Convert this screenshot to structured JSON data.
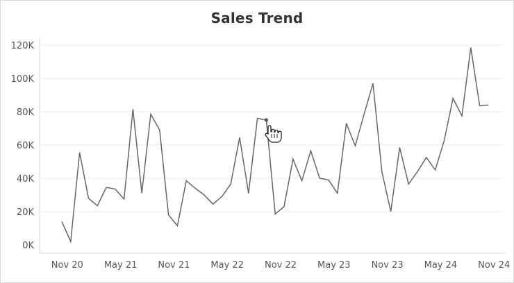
{
  "chart_data": {
    "type": "line",
    "title": "Sales Trend",
    "xlabel": "",
    "ylabel": "",
    "y_ticks": [
      "0K",
      "20K",
      "40K",
      "60K",
      "80K",
      "100K",
      "120K"
    ],
    "y_tick_values": [
      0,
      20000,
      40000,
      60000,
      80000,
      100000,
      120000
    ],
    "x_ticks": [
      "Nov 20",
      "May 21",
      "Nov 21",
      "May 22",
      "Nov 22",
      "May 23",
      "Nov 23",
      "May 24",
      "Nov 24"
    ],
    "x_tick_values": [
      "2020-11",
      "2021-05",
      "2021-11",
      "2022-05",
      "2022-11",
      "2023-05",
      "2023-11",
      "2024-05",
      "2024-11"
    ],
    "ylim": [
      0,
      120000
    ],
    "grid": "horizontal",
    "line_color": "#666666",
    "highlight_color": "#555555",
    "highlight_index": 23,
    "x": [
      "2020-10",
      "2020-11",
      "2020-12",
      "2021-01",
      "2021-02",
      "2021-03",
      "2021-04",
      "2021-05",
      "2021-06",
      "2021-07",
      "2021-08",
      "2021-09",
      "2021-10",
      "2021-11",
      "2021-12",
      "2022-01",
      "2022-02",
      "2022-03",
      "2022-04",
      "2022-05",
      "2022-06",
      "2022-07",
      "2022-08",
      "2022-09",
      "2022-10",
      "2022-11",
      "2022-12",
      "2023-01",
      "2023-02",
      "2023-03",
      "2023-04",
      "2023-05",
      "2023-06",
      "2023-07",
      "2023-08",
      "2023-09",
      "2023-10",
      "2023-11",
      "2023-12",
      "2024-01",
      "2024-02",
      "2024-03",
      "2024-04",
      "2024-05",
      "2024-06",
      "2024-07",
      "2024-08",
      "2024-09",
      "2024-10"
    ],
    "series": [
      {
        "values": [
          14000,
          2000,
          55500,
          28000,
          23500,
          34500,
          33500,
          27500,
          81500,
          31000,
          78500,
          69000,
          18000,
          11500,
          38500,
          34000,
          30000,
          24500,
          29000,
          36500,
          64500,
          31000,
          76000,
          75000,
          18500,
          23000,
          51500,
          38500,
          56500,
          40000,
          39000,
          31000,
          73000,
          59500,
          78500,
          97000,
          44000,
          20000,
          58500,
          36500,
          44000,
          52500,
          45000,
          62500,
          88000,
          77500,
          118500,
          83500,
          84000
        ]
      }
    ]
  },
  "icons": {
    "cursor": "hand-pointer-icon"
  }
}
